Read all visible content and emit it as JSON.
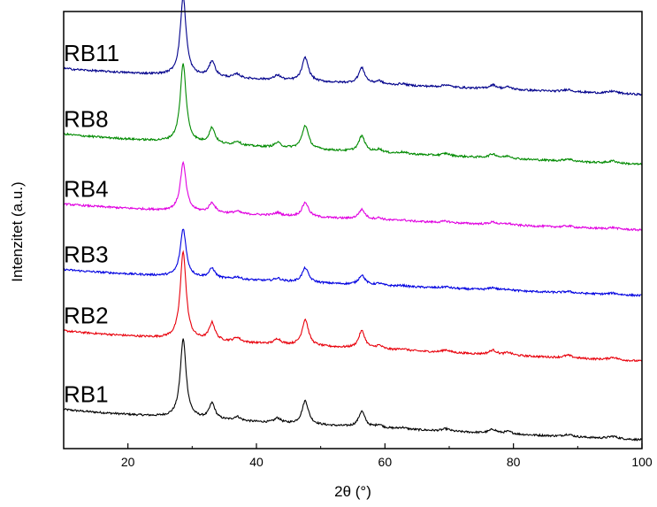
{
  "chart_data": {
    "type": "line",
    "title": "",
    "xlabel": "2θ (°)",
    "ylabel": "Intenzitet (a.u.)",
    "xlim": [
      10,
      100
    ],
    "ylim": [
      0,
      100
    ],
    "y_ticks_labeled": false,
    "grid": false,
    "legend": "inline-left",
    "xticks": [
      20,
      40,
      60,
      80,
      100
    ],
    "peaks": [
      {
        "x": 28.6,
        "w": 0.55,
        "rel": 1.0
      },
      {
        "x": 33.1,
        "w": 0.55,
        "rel": 0.2
      },
      {
        "x": 37.0,
        "w": 0.6,
        "rel": 0.05
      },
      {
        "x": 43.3,
        "w": 0.6,
        "rel": 0.06
      },
      {
        "x": 47.6,
        "w": 0.6,
        "rel": 0.3
      },
      {
        "x": 56.4,
        "w": 0.6,
        "rel": 0.2
      },
      {
        "x": 59.1,
        "w": 0.6,
        "rel": 0.04
      },
      {
        "x": 62.7,
        "w": 0.7,
        "rel": 0.02
      },
      {
        "x": 69.5,
        "w": 0.7,
        "rel": 0.03
      },
      {
        "x": 76.8,
        "w": 0.7,
        "rel": 0.05
      },
      {
        "x": 79.2,
        "w": 0.7,
        "rel": 0.03
      },
      {
        "x": 88.5,
        "w": 0.8,
        "rel": 0.03
      },
      {
        "x": 95.5,
        "w": 0.8,
        "rel": 0.03
      }
    ],
    "series": [
      {
        "name": "RB1",
        "color": "#000000",
        "baseline_start": 9,
        "baseline_end": 2,
        "peak_height": 18
      },
      {
        "name": "RB2",
        "color": "#e8000b",
        "baseline_start": 27,
        "baseline_end": 20,
        "peak_height": 20
      },
      {
        "name": "RB3",
        "color": "#0000e0",
        "baseline_start": 41,
        "baseline_end": 35,
        "peak_height": 11
      },
      {
        "name": "RB4",
        "color": "#e000e0",
        "baseline_start": 56,
        "baseline_end": 50,
        "peak_height": 11
      },
      {
        "name": "RB8",
        "color": "#008a00",
        "baseline_start": 72,
        "baseline_end": 65,
        "peak_height": 18
      },
      {
        "name": "RB11",
        "color": "#00008b",
        "baseline_start": 87,
        "baseline_end": 81,
        "peak_height": 18
      }
    ]
  }
}
